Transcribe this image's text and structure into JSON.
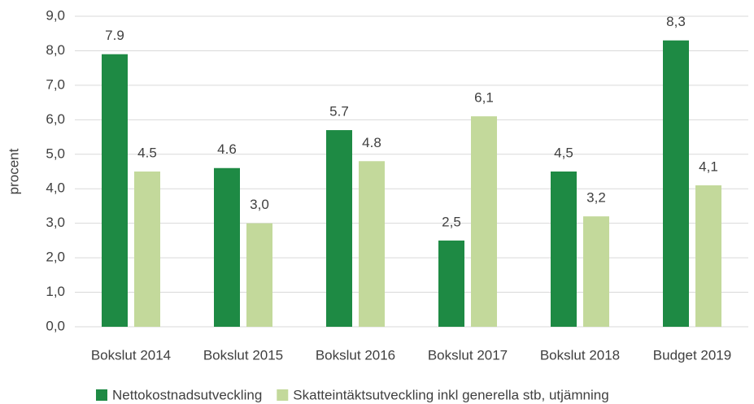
{
  "chart_data": {
    "type": "bar",
    "ylabel": "procent",
    "categories": [
      "Bokslut 2014",
      "Bokslut 2015",
      "Bokslut 2016",
      "Bokslut 2017",
      "Bokslut 2018",
      "Budget 2019"
    ],
    "series": [
      {
        "name": "Nettokostnadsutveckling",
        "color": "#1e8a44",
        "values": [
          7.9,
          4.6,
          5.7,
          2.5,
          4.5,
          8.3
        ],
        "value_labels": [
          "7.9",
          "4.6",
          "5.7",
          "2,5",
          "4,5",
          "8,3"
        ]
      },
      {
        "name": "Skatteintäktsutveckling inkl generella stb, utjämning",
        "color": "#c3d99b",
        "values": [
          4.5,
          3.0,
          4.8,
          6.1,
          3.2,
          4.1
        ],
        "value_labels": [
          "4.5",
          "3,0",
          "4.8",
          "6,1",
          "3,2",
          "4,1"
        ]
      }
    ],
    "ylim": [
      0,
      9
    ],
    "yticks": [
      {
        "value": 0,
        "label": "0,0"
      },
      {
        "value": 1,
        "label": "1,0"
      },
      {
        "value": 2,
        "label": "2,0"
      },
      {
        "value": 3,
        "label": "3,0"
      },
      {
        "value": 4,
        "label": "4,0"
      },
      {
        "value": 5,
        "label": "5,0"
      },
      {
        "value": 6,
        "label": "6,0"
      },
      {
        "value": 7,
        "label": "7,0"
      },
      {
        "value": 8,
        "label": "8,0"
      },
      {
        "value": 9,
        "label": "9,0"
      }
    ],
    "grid": true,
    "legend": "bottom"
  }
}
